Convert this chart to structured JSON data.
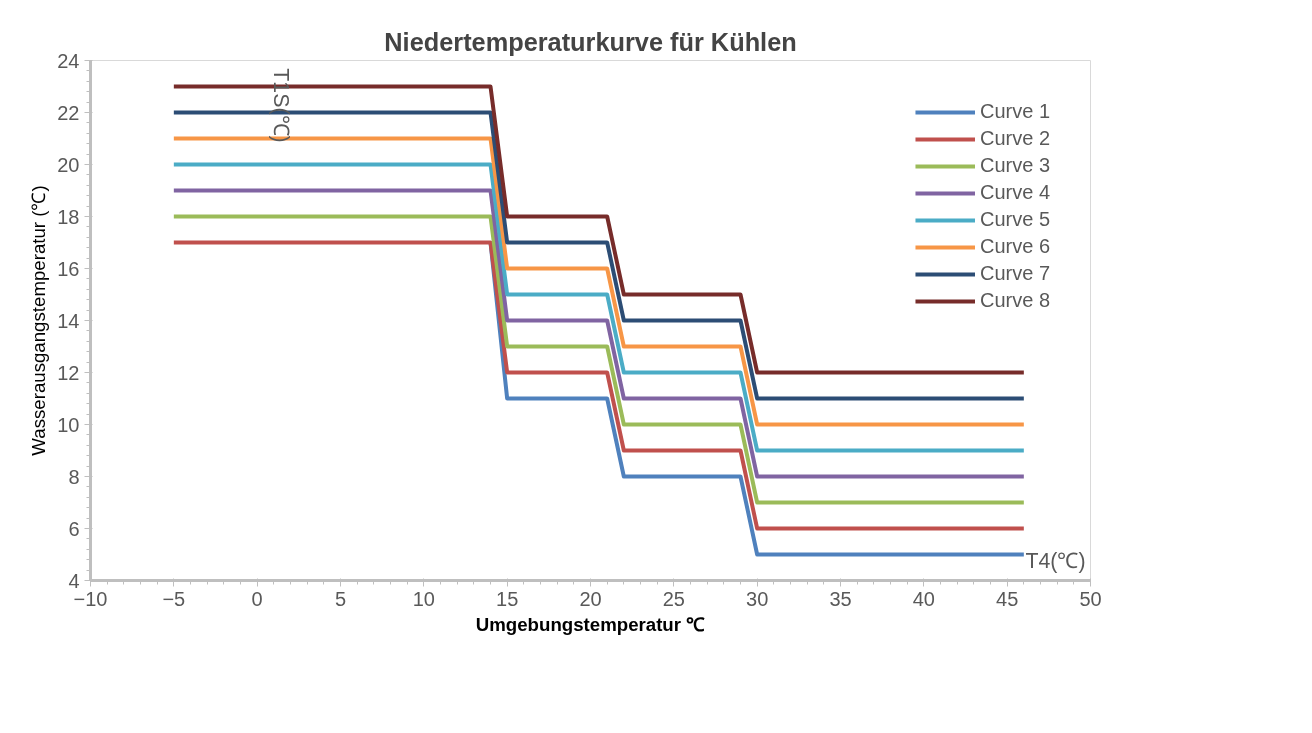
{
  "chart_data": {
    "type": "line",
    "title": "Niedertemperaturkurve für Kühlen",
    "xlabel": "Umgebungstemperatur ℃",
    "ylabel": "Wasserausgangstemperatur (℃)",
    "annotations": [
      "T1S(℃)",
      "T4(℃)"
    ],
    "xlim": [
      -10,
      50
    ],
    "xticks": [
      -10,
      -5,
      0,
      5,
      10,
      15,
      20,
      25,
      30,
      35,
      40,
      45,
      50
    ],
    "ylim": [
      4,
      24
    ],
    "yticks": [
      4,
      6,
      8,
      10,
      12,
      14,
      16,
      18,
      20,
      22,
      24
    ],
    "x": [
      -5,
      14,
      15,
      21,
      22,
      29,
      30,
      46
    ],
    "series": [
      {
        "name": "Curve 1",
        "color": "#4f81bd",
        "values": [
          null,
          17,
          11,
          11,
          8,
          8,
          5,
          5
        ]
      },
      {
        "name": "Curve 2",
        "color": "#c0504d",
        "values": [
          17,
          17,
          12,
          12,
          9,
          9,
          6,
          6
        ]
      },
      {
        "name": "Curve 3",
        "color": "#9bbb59",
        "values": [
          18,
          18,
          13,
          13,
          10,
          10,
          7,
          7
        ]
      },
      {
        "name": "Curve 4",
        "color": "#8064a2",
        "values": [
          19,
          19,
          14,
          14,
          11,
          11,
          8,
          8
        ]
      },
      {
        "name": "Curve 5",
        "color": "#4bacc6",
        "values": [
          20,
          20,
          15,
          15,
          12,
          12,
          9,
          9
        ]
      },
      {
        "name": "Curve 6",
        "color": "#f79646",
        "values": [
          21,
          21,
          16,
          16,
          13,
          13,
          10,
          10
        ]
      },
      {
        "name": "Curve 7",
        "color": "#2c4d75",
        "values": [
          22,
          22,
          17,
          17,
          14,
          14,
          11,
          11
        ]
      },
      {
        "name": "Curve 8",
        "color": "#772c2a",
        "values": [
          23,
          23,
          18,
          18,
          15,
          15,
          12,
          12
        ]
      }
    ],
    "legend": "right",
    "grid": false,
    "marker": "none",
    "line_style": "solid"
  }
}
